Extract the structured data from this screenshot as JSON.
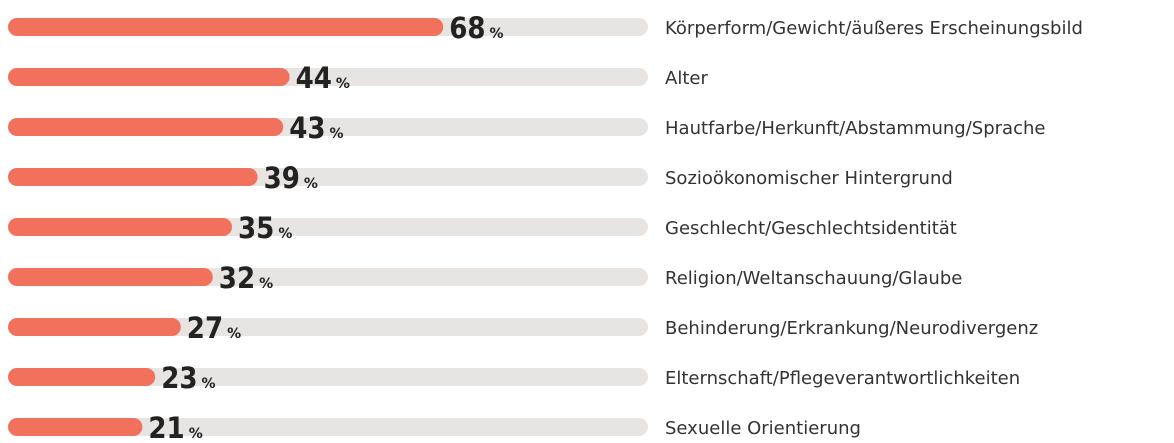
{
  "chart_data": {
    "type": "bar",
    "orientation": "horizontal",
    "categories": [
      "Körperform/Gewicht/äußeres Erscheinungsbild",
      "Alter",
      "Hautfarbe/Herkunft/Abstammung/Sprache",
      "Sozioökonomischer Hintergrund",
      "Geschlecht/Geschlechtsidentität",
      "Religion/Weltanschauung/Glaube",
      "Behinderung/Erkrankung/Neurodivergenz",
      "Elternschaft/Pflegeverantwortlichkeiten",
      "Sexuelle Orientierung"
    ],
    "values": [
      68,
      44,
      43,
      39,
      35,
      32,
      27,
      23,
      21
    ],
    "unit": "%",
    "xlim": [
      0,
      100
    ],
    "color": "#f2715d",
    "track_color": "#e8e4e1"
  }
}
